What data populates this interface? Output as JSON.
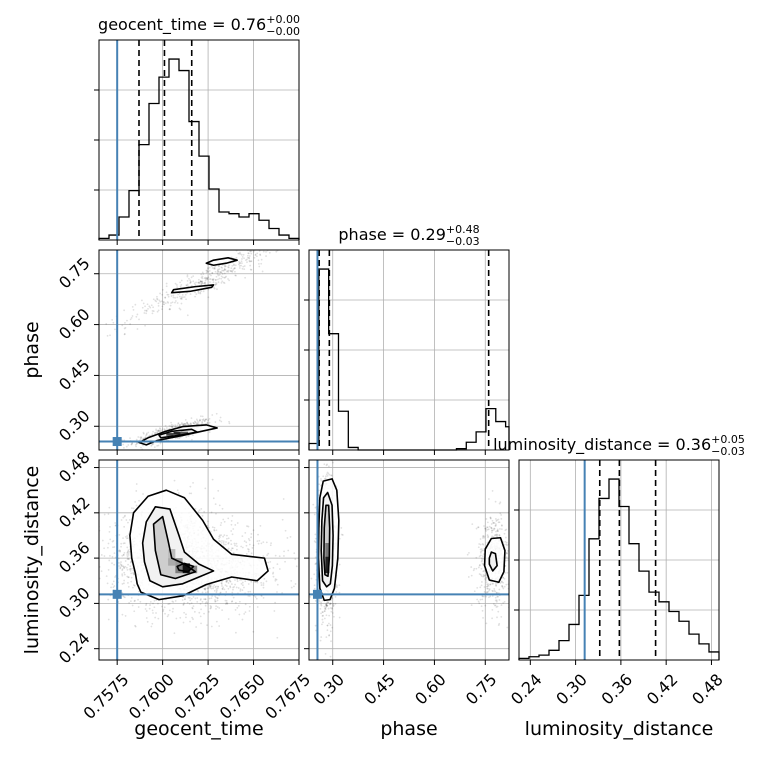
{
  "chart_data": {
    "type": "corner",
    "parameters": [
      "geocent_time",
      "phase",
      "luminosity_distance"
    ],
    "truths": {
      "geocent_time": 0.7575,
      "phase": 0.255,
      "luminosity_distance": 0.312
    },
    "titles": {
      "geocent_time": {
        "prefix": "geocent_time = 0.76",
        "plus": "+0.00",
        "minus": "−0.00"
      },
      "phase": {
        "prefix": "phase = 0.29",
        "plus": "+0.48",
        "minus": "−0.03"
      },
      "luminosity_distance": {
        "prefix": "luminosity_distance = 0.36",
        "plus": "+0.05",
        "minus": "−0.03"
      }
    },
    "axis_labels": {
      "x": [
        "geocent_time",
        "phase",
        "luminosity_distance"
      ],
      "y": [
        "phase",
        "luminosity_distance"
      ]
    },
    "ranges": {
      "geocent_time": [
        0.7565,
        0.7675
      ],
      "phase": [
        0.23,
        0.82
      ],
      "luminosity_distance": [
        0.225,
        0.49
      ]
    },
    "ticks": {
      "geocent_time": [
        "0.7575",
        "0.7600",
        "0.7625",
        "0.7650",
        "0.7675"
      ],
      "phase": [
        "0.30",
        "0.45",
        "0.60",
        "0.75"
      ],
      "luminosity_distance": [
        "0.24",
        "0.30",
        "0.36",
        "0.42",
        "0.48"
      ]
    },
    "quantiles": {
      "geocent_time": [
        0.7587,
        0.7601,
        0.7616
      ],
      "phase": [
        0.26,
        0.29,
        0.76
      ],
      "luminosity_distance": [
        0.332,
        0.358,
        0.406
      ]
    },
    "histograms": {
      "geocent_time": {
        "edges": [
          0.7565,
          0.75705,
          0.7576,
          0.75815,
          0.7587,
          0.75925,
          0.7598,
          0.76035,
          0.7609,
          0.76145,
          0.762,
          0.76255,
          0.7631,
          0.76365,
          0.7642,
          0.76475,
          0.7653,
          0.76585,
          0.7664,
          0.76695,
          0.7675
        ],
        "counts": [
          1,
          3,
          14,
          30,
          58,
          83,
          99,
          110,
          103,
          72,
          51,
          31,
          17,
          16,
          14,
          16,
          12,
          7,
          3,
          1
        ]
      },
      "phase": {
        "edges": [
          0.23,
          0.259,
          0.288,
          0.317,
          0.346,
          0.375,
          0.404,
          0.433,
          0.462,
          0.491,
          0.52,
          0.549,
          0.578,
          0.607,
          0.636,
          0.665,
          0.694,
          0.723,
          0.752,
          0.781,
          0.81,
          0.82
        ],
        "counts": [
          5,
          140,
          90,
          30,
          2,
          0,
          0,
          0,
          0,
          0,
          0,
          0,
          0,
          0,
          0,
          1,
          6,
          14,
          32,
          22,
          18
        ]
      },
      "luminosity_distance": {
        "edges": [
          0.225,
          0.23825,
          0.2515,
          0.26475,
          0.278,
          0.29125,
          0.3045,
          0.31775,
          0.331,
          0.34425,
          0.3575,
          0.37075,
          0.384,
          0.39725,
          0.4105,
          0.42375,
          0.437,
          0.45025,
          0.4635,
          0.47675,
          0.49
        ],
        "counts": [
          1,
          2,
          3,
          6,
          12,
          22,
          40,
          75,
          100,
          112,
          95,
          72,
          55,
          42,
          36,
          30,
          24,
          16,
          10,
          5
        ]
      }
    },
    "contours": {
      "geocent_time__phase": [
        {
          "level": 1,
          "points": [
            [
              0.7591,
              0.245
            ],
            [
              0.7597,
              0.258
            ],
            [
              0.7611,
              0.273
            ],
            [
              0.7623,
              0.287
            ],
            [
              0.763,
              0.295
            ],
            [
              0.7624,
              0.304
            ],
            [
              0.7611,
              0.299
            ],
            [
              0.7601,
              0.284
            ],
            [
              0.7592,
              0.266
            ],
            [
              0.7587,
              0.252
            ]
          ]
        },
        {
          "level": 2,
          "points": [
            [
              0.7599,
              0.266
            ],
            [
              0.761,
              0.274
            ],
            [
              0.7619,
              0.283
            ],
            [
              0.7616,
              0.291
            ],
            [
              0.7605,
              0.285
            ],
            [
              0.7598,
              0.274
            ]
          ]
        },
        {
          "level": 1,
          "points": [
            [
              0.7605,
              0.694
            ],
            [
              0.7615,
              0.698
            ],
            [
              0.7627,
              0.71
            ],
            [
              0.7628,
              0.717
            ],
            [
              0.7618,
              0.712
            ],
            [
              0.7606,
              0.703
            ]
          ]
        },
        {
          "level": 1,
          "points": [
            [
              0.7628,
              0.775
            ],
            [
              0.7635,
              0.781
            ],
            [
              0.7641,
              0.79
            ],
            [
              0.7636,
              0.797
            ],
            [
              0.7628,
              0.79
            ],
            [
              0.7624,
              0.781
            ]
          ]
        }
      ],
      "geocent_time__luminosity_distance": [
        {
          "level": 1,
          "points": [
            [
              0.7586,
              0.326
            ],
            [
              0.7588,
              0.315
            ],
            [
              0.7598,
              0.305
            ],
            [
              0.7611,
              0.31
            ],
            [
              0.7624,
              0.325
            ],
            [
              0.7638,
              0.335
            ],
            [
              0.7652,
              0.33
            ],
            [
              0.7658,
              0.343
            ],
            [
              0.7656,
              0.36
            ],
            [
              0.7638,
              0.365
            ],
            [
              0.7628,
              0.385
            ],
            [
              0.7622,
              0.41
            ],
            [
              0.7612,
              0.44
            ],
            [
              0.7602,
              0.45
            ],
            [
              0.7592,
              0.442
            ],
            [
              0.7584,
              0.42
            ],
            [
              0.7582,
              0.39
            ],
            [
              0.7583,
              0.36
            ],
            [
              0.7585,
              0.34
            ]
          ]
        },
        {
          "level": 2,
          "points": [
            [
              0.7593,
              0.33
            ],
            [
              0.76,
              0.322
            ],
            [
              0.7611,
              0.326
            ],
            [
              0.7621,
              0.336
            ],
            [
              0.7628,
              0.343
            ],
            [
              0.762,
              0.352
            ],
            [
              0.7612,
              0.368
            ],
            [
              0.7609,
              0.39
            ],
            [
              0.7604,
              0.425
            ],
            [
              0.7596,
              0.428
            ],
            [
              0.7591,
              0.408
            ],
            [
              0.7589,
              0.38
            ],
            [
              0.759,
              0.355
            ]
          ]
        },
        {
          "level": 3,
          "points": [
            [
              0.7599,
              0.338
            ],
            [
              0.7607,
              0.333
            ],
            [
              0.7618,
              0.342
            ],
            [
              0.7612,
              0.352
            ],
            [
              0.7605,
              0.36
            ],
            [
              0.7603,
              0.383
            ],
            [
              0.76,
              0.415
            ],
            [
              0.7595,
              0.405
            ],
            [
              0.7596,
              0.37
            ]
          ]
        },
        {
          "level": 4,
          "points": [
            [
              0.7609,
              0.344
            ],
            [
              0.7614,
              0.342
            ],
            [
              0.7617,
              0.349
            ],
            [
              0.7612,
              0.353
            ],
            [
              0.7608,
              0.349
            ]
          ]
        }
      ],
      "phase__luminosity_distance": [
        {
          "level": 1,
          "points": [
            [
              0.262,
              0.32
            ],
            [
              0.275,
              0.304
            ],
            [
              0.292,
              0.305
            ],
            [
              0.305,
              0.32
            ],
            [
              0.315,
              0.36
            ],
            [
              0.318,
              0.41
            ],
            [
              0.312,
              0.45
            ],
            [
              0.298,
              0.465
            ],
            [
              0.272,
              0.462
            ],
            [
              0.262,
              0.44
            ],
            [
              0.259,
              0.4
            ],
            [
              0.258,
              0.36
            ]
          ]
        },
        {
          "level": 2,
          "points": [
            [
              0.27,
              0.33
            ],
            [
              0.282,
              0.322
            ],
            [
              0.293,
              0.326
            ],
            [
              0.299,
              0.35
            ],
            [
              0.301,
              0.39
            ],
            [
              0.298,
              0.43
            ],
            [
              0.285,
              0.447
            ],
            [
              0.273,
              0.44
            ],
            [
              0.268,
              0.41
            ],
            [
              0.266,
              0.37
            ]
          ]
        },
        {
          "level": 3,
          "points": [
            [
              0.277,
              0.338
            ],
            [
              0.286,
              0.336
            ],
            [
              0.29,
              0.36
            ],
            [
              0.291,
              0.4
            ],
            [
              0.288,
              0.43
            ],
            [
              0.28,
              0.43
            ],
            [
              0.275,
              0.4
            ],
            [
              0.274,
              0.36
            ]
          ]
        },
        {
          "level": 1,
          "points": [
            [
              0.748,
              0.35
            ],
            [
              0.762,
              0.331
            ],
            [
              0.79,
              0.328
            ],
            [
              0.805,
              0.342
            ],
            [
              0.808,
              0.37
            ],
            [
              0.795,
              0.387
            ],
            [
              0.768,
              0.386
            ],
            [
              0.75,
              0.372
            ]
          ]
        },
        {
          "level": 2,
          "points": [
            [
              0.762,
              0.352
            ],
            [
              0.772,
              0.343
            ],
            [
              0.785,
              0.35
            ],
            [
              0.78,
              0.366
            ],
            [
              0.768,
              0.368
            ],
            [
              0.762,
              0.36
            ]
          ]
        }
      ]
    }
  }
}
